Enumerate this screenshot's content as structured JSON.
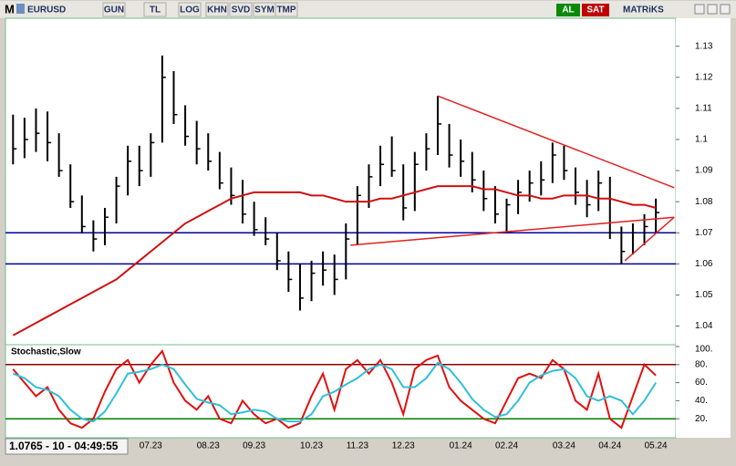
{
  "toolbar": {
    "menu": "M",
    "symbol": "EURUSD",
    "buttons": [
      "GUN",
      "TL",
      "LOG",
      "KHN",
      "SVD",
      "SYM",
      "TMP"
    ],
    "buy": "AL",
    "sell": "SAT",
    "brand": "MATRiKS"
  },
  "status": "1.0765 - 10 - 04:49:55",
  "chart_data": [
    {
      "type": "ohlc",
      "color": "#000000",
      "high": [
        1.108,
        1.107,
        1.11,
        1.109,
        1.102,
        1.092,
        1.082,
        1.074,
        1.078,
        1.088,
        1.098,
        1.098,
        1.102,
        1.127,
        1.122,
        1.111,
        1.106,
        1.102,
        1.096,
        1.091,
        1.087,
        1.08,
        1.075,
        1.07,
        1.064,
        1.06,
        1.061,
        1.064,
        1.063,
        1.073,
        1.085,
        1.092,
        1.098,
        1.101,
        1.092,
        1.096,
        1.102,
        1.114,
        1.105,
        1.1,
        1.096,
        1.09,
        1.085,
        1.081,
        1.087,
        1.09,
        1.093,
        1.099,
        1.098,
        1.091,
        1.087,
        1.09,
        1.088,
        1.072,
        1.073,
        1.076,
        1.081
      ],
      "low": [
        1.092,
        1.094,
        1.096,
        1.093,
        1.088,
        1.078,
        1.07,
        1.064,
        1.066,
        1.073,
        1.082,
        1.085,
        1.088,
        1.099,
        1.105,
        1.098,
        1.092,
        1.09,
        1.084,
        1.079,
        1.073,
        1.069,
        1.066,
        1.058,
        1.051,
        1.045,
        1.048,
        1.053,
        1.05,
        1.055,
        1.066,
        1.078,
        1.085,
        1.088,
        1.074,
        1.077,
        1.09,
        1.095,
        1.091,
        1.088,
        1.083,
        1.077,
        1.073,
        1.07,
        1.076,
        1.08,
        1.082,
        1.086,
        1.087,
        1.079,
        1.075,
        1.077,
        1.068,
        1.06,
        1.063,
        1.066,
        1.07
      ],
      "close": [
        1.097,
        1.1,
        1.102,
        1.099,
        1.09,
        1.08,
        1.072,
        1.068,
        1.075,
        1.085,
        1.093,
        1.09,
        1.099,
        1.12,
        1.108,
        1.101,
        1.097,
        1.093,
        1.086,
        1.082,
        1.076,
        1.071,
        1.068,
        1.061,
        1.055,
        1.049,
        1.057,
        1.058,
        1.055,
        1.068,
        1.082,
        1.088,
        1.092,
        1.09,
        1.078,
        1.092,
        1.097,
        1.105,
        1.095,
        1.093,
        1.087,
        1.081,
        1.076,
        1.079,
        1.083,
        1.086,
        1.087,
        1.095,
        1.09,
        1.083,
        1.079,
        1.086,
        1.07,
        1.064,
        1.07,
        1.072,
        1.0765
      ],
      "ylim": [
        1.034,
        1.139
      ],
      "yticks": [
        1.04,
        1.05,
        1.06,
        1.07,
        1.08,
        1.09,
        1.1,
        1.11,
        1.12,
        1.13
      ],
      "moving_average": {
        "color": "#d01010",
        "values": [
          1.037,
          1.039,
          1.041,
          1.043,
          1.045,
          1.047,
          1.049,
          1.051,
          1.053,
          1.055,
          1.058,
          1.061,
          1.064,
          1.067,
          1.07,
          1.073,
          1.075,
          1.077,
          1.079,
          1.081,
          1.082,
          1.083,
          1.083,
          1.083,
          1.083,
          1.083,
          1.082,
          1.082,
          1.081,
          1.08,
          1.08,
          1.08,
          1.081,
          1.081,
          1.082,
          1.083,
          1.084,
          1.085,
          1.085,
          1.085,
          1.085,
          1.084,
          1.084,
          1.083,
          1.082,
          1.082,
          1.081,
          1.081,
          1.082,
          1.082,
          1.082,
          1.081,
          1.081,
          1.08,
          1.079,
          1.079,
          1.078
        ]
      },
      "hlines": {
        "color": "#0000a0",
        "values": [
          1.07,
          1.06
        ]
      },
      "trend_lines": [
        {
          "color": "#e02020",
          "x": [
            37,
            57.6
          ],
          "y": [
            1.114,
            1.0845
          ]
        },
        {
          "color": "#e02020",
          "x": [
            29.4,
            57.6
          ],
          "y": [
            1.066,
            1.075
          ]
        },
        {
          "color": "#e02020",
          "x": [
            53.3,
            57.6
          ],
          "y": [
            1.061,
            1.075
          ]
        }
      ]
    },
    {
      "type": "line",
      "title": "Stochastic,Slow",
      "categories": [
        null,
        null,
        null,
        null,
        null,
        null,
        null,
        null,
        null,
        null,
        null,
        null,
        "07.23",
        null,
        null,
        null,
        null,
        "08.23",
        null,
        null,
        null,
        "09.23",
        null,
        null,
        null,
        null,
        "10.23",
        null,
        null,
        null,
        "11.23",
        null,
        null,
        null,
        "12.23",
        null,
        null,
        null,
        null,
        "01.24",
        null,
        null,
        null,
        "02.24",
        null,
        null,
        null,
        null,
        "03.24",
        null,
        null,
        null,
        "04.24",
        null,
        null,
        null,
        "05.24"
      ],
      "series": [
        {
          "color": "#e01010",
          "values": [
            75,
            60,
            45,
            55,
            30,
            15,
            10,
            20,
            50,
            75,
            85,
            60,
            80,
            95,
            60,
            40,
            30,
            45,
            20,
            15,
            40,
            25,
            15,
            20,
            10,
            15,
            45,
            70,
            30,
            75,
            85,
            70,
            85,
            60,
            25,
            75,
            85,
            90,
            55,
            40,
            30,
            20,
            15,
            40,
            65,
            70,
            65,
            85,
            75,
            40,
            30,
            70,
            20,
            10,
            45,
            80,
            68
          ]
        },
        {
          "color": "#30c0d8",
          "values": [
            70,
            65,
            55,
            52,
            45,
            30,
            20,
            17,
            28,
            48,
            70,
            72,
            75,
            80,
            75,
            58,
            42,
            38,
            35,
            25,
            27,
            30,
            28,
            20,
            17,
            17,
            25,
            45,
            50,
            58,
            65,
            75,
            80,
            75,
            55,
            55,
            65,
            82,
            75,
            60,
            42,
            30,
            22,
            25,
            40,
            60,
            68,
            73,
            75,
            65,
            45,
            40,
            45,
            40,
            25,
            40,
            60
          ]
        }
      ],
      "ylim": [
        0,
        100
      ],
      "yticks": [
        {
          "value": 20,
          "label": "20."
        },
        {
          "value": 40,
          "label": "40."
        },
        {
          "value": 60,
          "label": "60."
        },
        {
          "value": 80,
          "label": "80."
        },
        {
          "value": 100,
          "label": "100."
        }
      ],
      "hlines": [
        {
          "value": 80,
          "color": "#8b0000"
        },
        {
          "value": 20,
          "color": "#008000"
        }
      ]
    }
  ]
}
